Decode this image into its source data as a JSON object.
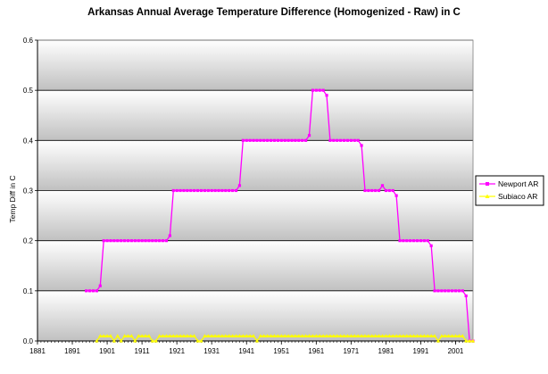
{
  "chart_data": {
    "type": "line",
    "title": "Arkansas Annual Average Temperature Difference (Homogenized - Raw) in C",
    "xlabel": "",
    "ylabel": "Temp Diff in C",
    "xlim": [
      1881,
      2006
    ],
    "ylim": [
      0,
      0.6
    ],
    "x_ticks": [
      1881,
      1891,
      1901,
      1911,
      1921,
      1931,
      1941,
      1951,
      1961,
      1971,
      1981,
      1991,
      2001
    ],
    "y_ticks": [
      "0.0",
      "0.1",
      "0.2",
      "0.3",
      "0.4",
      "0.5",
      "0.6"
    ],
    "legend": {
      "position": "right"
    },
    "colors": {
      "newport": "#ff00ff",
      "subiaco": "#ffff00",
      "band_light": "#ffffff",
      "band_dark": "#c0c0c0"
    },
    "series": [
      {
        "name": "Newport AR",
        "years": [
          1895,
          1896,
          1897,
          1898,
          1899,
          1900,
          1901,
          1902,
          1903,
          1904,
          1905,
          1906,
          1907,
          1908,
          1909,
          1910,
          1911,
          1912,
          1913,
          1914,
          1915,
          1916,
          1917,
          1918,
          1919,
          1920,
          1921,
          1922,
          1923,
          1924,
          1925,
          1926,
          1927,
          1928,
          1929,
          1930,
          1931,
          1932,
          1933,
          1934,
          1935,
          1936,
          1937,
          1938,
          1939,
          1940,
          1941,
          1942,
          1943,
          1944,
          1945,
          1946,
          1947,
          1948,
          1949,
          1950,
          1951,
          1952,
          1953,
          1954,
          1955,
          1956,
          1957,
          1958,
          1959,
          1960,
          1961,
          1962,
          1963,
          1964,
          1965,
          1966,
          1967,
          1968,
          1969,
          1970,
          1971,
          1972,
          1973,
          1974,
          1975,
          1976,
          1977,
          1978,
          1979,
          1980,
          1981,
          1982,
          1983,
          1984,
          1985,
          1986,
          1987,
          1988,
          1989,
          1990,
          1991,
          1992,
          1993,
          1994,
          1995,
          1996,
          1997,
          1998,
          1999,
          2000,
          2001,
          2002,
          2003,
          2004,
          2005,
          2006
        ],
        "values": [
          0.1,
          0.1,
          0.1,
          0.1,
          0.11,
          0.2,
          0.2,
          0.2,
          0.2,
          0.2,
          0.2,
          0.2,
          0.2,
          0.2,
          0.2,
          0.2,
          0.2,
          0.2,
          0.2,
          0.2,
          0.2,
          0.2,
          0.2,
          0.2,
          0.21,
          0.3,
          0.3,
          0.3,
          0.3,
          0.3,
          0.3,
          0.3,
          0.3,
          0.3,
          0.3,
          0.3,
          0.3,
          0.3,
          0.3,
          0.3,
          0.3,
          0.3,
          0.3,
          0.3,
          0.31,
          0.4,
          0.4,
          0.4,
          0.4,
          0.4,
          0.4,
          0.4,
          0.4,
          0.4,
          0.4,
          0.4,
          0.4,
          0.4,
          0.4,
          0.4,
          0.4,
          0.4,
          0.4,
          0.4,
          0.41,
          0.5,
          0.5,
          0.5,
          0.5,
          0.49,
          0.4,
          0.4,
          0.4,
          0.4,
          0.4,
          0.4,
          0.4,
          0.4,
          0.4,
          0.39,
          0.3,
          0.3,
          0.3,
          0.3,
          0.3,
          0.31,
          0.3,
          0.3,
          0.3,
          0.29,
          0.2,
          0.2,
          0.2,
          0.2,
          0.2,
          0.2,
          0.2,
          0.2,
          0.2,
          0.19,
          0.1,
          0.1,
          0.1,
          0.1,
          0.1,
          0.1,
          0.1,
          0.1,
          0.1,
          0.09,
          0.0,
          0.0
        ]
      },
      {
        "name": "Subiaco AR",
        "years": [
          1898,
          1899,
          1900,
          1901,
          1902,
          1903,
          1904,
          1905,
          1906,
          1907,
          1908,
          1909,
          1910,
          1911,
          1912,
          1913,
          1914,
          1915,
          1916,
          1917,
          1918,
          1919,
          1920,
          1921,
          1922,
          1923,
          1924,
          1925,
          1926,
          1927,
          1928,
          1929,
          1930,
          1931,
          1932,
          1933,
          1934,
          1935,
          1936,
          1937,
          1938,
          1939,
          1940,
          1941,
          1942,
          1943,
          1944,
          1945,
          1946,
          1947,
          1948,
          1949,
          1950,
          1951,
          1952,
          1953,
          1954,
          1955,
          1956,
          1957,
          1958,
          1959,
          1960,
          1961,
          1962,
          1963,
          1964,
          1965,
          1966,
          1967,
          1968,
          1969,
          1970,
          1971,
          1972,
          1973,
          1974,
          1975,
          1976,
          1977,
          1978,
          1979,
          1980,
          1981,
          1982,
          1983,
          1984,
          1985,
          1986,
          1987,
          1988,
          1989,
          1990,
          1991,
          1992,
          1993,
          1994,
          1995,
          1996,
          1997,
          1998,
          1999,
          2000,
          2001,
          2002,
          2003,
          2004,
          2005,
          2006
        ],
        "values": [
          0.0,
          0.01,
          0.01,
          0.01,
          0.01,
          0.0,
          0.01,
          0.0,
          0.01,
          0.01,
          0.01,
          0.0,
          0.01,
          0.01,
          0.01,
          0.01,
          0.0,
          0.0,
          0.01,
          0.01,
          0.01,
          0.01,
          0.01,
          0.01,
          0.01,
          0.01,
          0.01,
          0.01,
          0.01,
          0.0,
          0.0,
          0.01,
          0.01,
          0.01,
          0.01,
          0.01,
          0.01,
          0.01,
          0.01,
          0.01,
          0.01,
          0.01,
          0.01,
          0.01,
          0.01,
          0.01,
          0.0,
          0.01,
          0.01,
          0.01,
          0.01,
          0.01,
          0.01,
          0.01,
          0.01,
          0.01,
          0.01,
          0.01,
          0.01,
          0.01,
          0.01,
          0.01,
          0.01,
          0.01,
          0.01,
          0.01,
          0.01,
          0.01,
          0.01,
          0.01,
          0.01,
          0.01,
          0.01,
          0.01,
          0.01,
          0.01,
          0.01,
          0.01,
          0.01,
          0.01,
          0.01,
          0.01,
          0.01,
          0.01,
          0.01,
          0.01,
          0.01,
          0.01,
          0.01,
          0.01,
          0.01,
          0.01,
          0.01,
          0.01,
          0.01,
          0.01,
          0.01,
          0.01,
          0.0,
          0.01,
          0.01,
          0.01,
          0.01,
          0.01,
          0.01,
          0.01,
          0.0,
          0.0,
          0.0
        ]
      }
    ]
  }
}
